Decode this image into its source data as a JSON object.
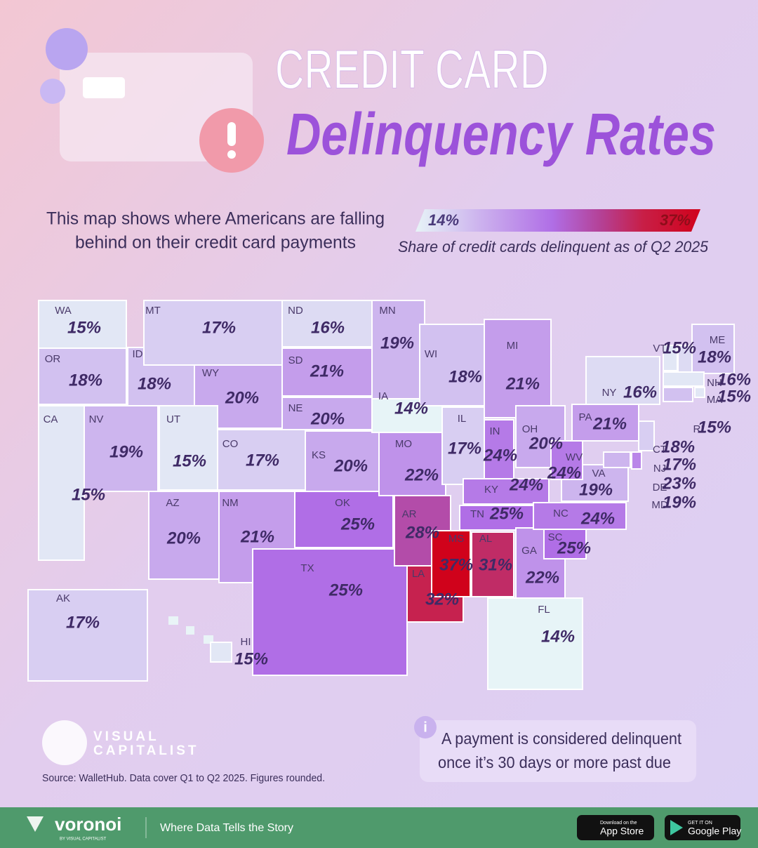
{
  "header": {
    "title_line1": "CREDIT CARD",
    "title_line2": "Delinquency Rates",
    "subtitle": [
      "This map shows where Americans are falling",
      "behind on their credit card payments"
    ]
  },
  "legend": {
    "min": {
      "value": 14,
      "label": "14%"
    },
    "max": {
      "value": 37,
      "label": "37%"
    },
    "caption": "Share of credit cards delinquent as of Q2 2025"
  },
  "states": [
    {
      "state": "WA",
      "value": 15,
      "label": "15%"
    },
    {
      "state": "OR",
      "value": 18,
      "label": "18%"
    },
    {
      "state": "CA",
      "value": 15,
      "label": "15%"
    },
    {
      "state": "ID",
      "value": 18,
      "label": "18%"
    },
    {
      "state": "MT",
      "value": 17,
      "label": "17%"
    },
    {
      "state": "WY",
      "value": 20,
      "label": "20%"
    },
    {
      "state": "NV",
      "value": 19,
      "label": "19%"
    },
    {
      "state": "UT",
      "value": 15,
      "label": "15%"
    },
    {
      "state": "CO",
      "value": 17,
      "label": "17%"
    },
    {
      "state": "AZ",
      "value": 20,
      "label": "20%"
    },
    {
      "state": "NM",
      "value": 21,
      "label": "21%"
    },
    {
      "state": "ND",
      "value": 16,
      "label": "16%"
    },
    {
      "state": "SD",
      "value": 21,
      "label": "21%"
    },
    {
      "state": "NE",
      "value": 20,
      "label": "20%"
    },
    {
      "state": "KS",
      "value": 20,
      "label": "20%"
    },
    {
      "state": "OK",
      "value": 25,
      "label": "25%"
    },
    {
      "state": "TX",
      "value": 25,
      "label": "25%"
    },
    {
      "state": "MN",
      "value": 19,
      "label": "19%"
    },
    {
      "state": "IA",
      "value": 14,
      "label": "14%"
    },
    {
      "state": "MO",
      "value": 22,
      "label": "22%"
    },
    {
      "state": "AR",
      "value": 28,
      "label": "28%"
    },
    {
      "state": "LA",
      "value": 32,
      "label": "32%"
    },
    {
      "state": "WI",
      "value": 18,
      "label": "18%"
    },
    {
      "state": "IL",
      "value": 17,
      "label": "17%"
    },
    {
      "state": "MI",
      "value": 21,
      "label": "21%"
    },
    {
      "state": "IN",
      "value": 24,
      "label": "24%"
    },
    {
      "state": "OH",
      "value": 20,
      "label": "20%"
    },
    {
      "state": "KY",
      "value": 24,
      "label": "24%"
    },
    {
      "state": "TN",
      "value": 25,
      "label": "25%"
    },
    {
      "state": "MS",
      "value": 37,
      "label": "37%"
    },
    {
      "state": "AL",
      "value": 31,
      "label": "31%"
    },
    {
      "state": "GA",
      "value": 22,
      "label": "22%"
    },
    {
      "state": "FL",
      "value": 14,
      "label": "14%"
    },
    {
      "state": "SC",
      "value": 25,
      "label": "25%"
    },
    {
      "state": "NC",
      "value": 24,
      "label": "24%"
    },
    {
      "state": "VA",
      "value": 19,
      "label": "19%"
    },
    {
      "state": "WV",
      "value": 24,
      "label": "24%"
    },
    {
      "state": "PA",
      "value": 21,
      "label": "21%"
    },
    {
      "state": "NY",
      "value": 16,
      "label": "16%"
    },
    {
      "state": "VT",
      "value": 15,
      "label": "15%"
    },
    {
      "state": "NH",
      "value": 16,
      "label": "16%"
    },
    {
      "state": "ME",
      "value": 18,
      "label": "18%"
    },
    {
      "state": "MA",
      "value": 15,
      "label": "15%"
    },
    {
      "state": "RI",
      "value": 15,
      "label": "15%"
    },
    {
      "state": "CT",
      "value": 18,
      "label": "18%"
    },
    {
      "state": "NJ",
      "value": 17,
      "label": "17%"
    },
    {
      "state": "DE",
      "value": 23,
      "label": "23%"
    },
    {
      "state": "MD",
      "value": 19,
      "label": "19%"
    },
    {
      "state": "AK",
      "value": 17,
      "label": "17%"
    },
    {
      "state": "HI",
      "value": 15,
      "label": "15%"
    }
  ],
  "note": [
    "A payment is considered delinquent",
    "once it’s 30 days or more past due"
  ],
  "brand": {
    "logo": [
      "VISUAL",
      "CAPITALIST"
    ]
  },
  "source": "Source: WalletHub. Data cover Q1 to Q2 2025. Figures rounded.",
  "footer": {
    "brand": "voronoi",
    "by": "BY VISUAL CAPITALIST",
    "tagline": "Where Data Tells the Story",
    "app_store": [
      "Download on the",
      "App Store"
    ],
    "google_play": [
      "GET IT ON",
      "Google Play"
    ]
  }
}
